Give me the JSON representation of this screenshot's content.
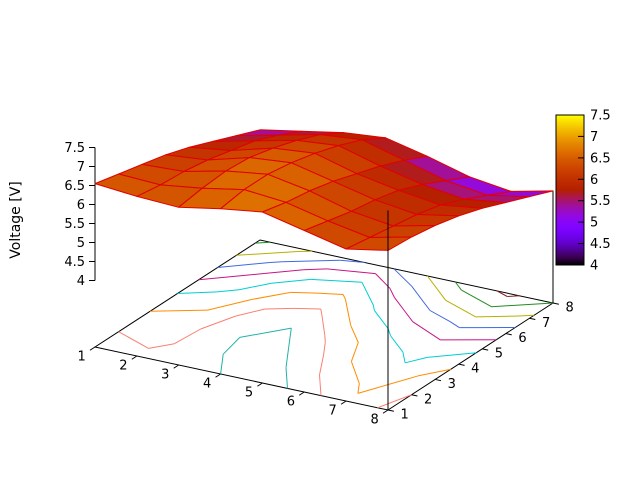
{
  "window": {
    "background": "#ffffff"
  },
  "chart_data": {
    "type": "surface3d_with_base_contours",
    "title": "",
    "zlabel": "Voltage [V]",
    "x": [
      1,
      2,
      3,
      4,
      5,
      6,
      7,
      8
    ],
    "y": [
      1,
      2,
      3,
      4,
      5,
      6,
      7,
      8
    ],
    "z_grid": [
      [
        6.55,
        6.45,
        6.4,
        6.6,
        6.75,
        6.5,
        6.25,
        6.45
      ],
      [
        6.4,
        6.35,
        6.5,
        6.7,
        6.6,
        6.35,
        6.15,
        6.4
      ],
      [
        6.25,
        6.3,
        6.55,
        6.7,
        6.5,
        6.2,
        6.05,
        6.3
      ],
      [
        6.1,
        6.2,
        6.5,
        6.6,
        6.35,
        6.1,
        5.95,
        6.15
      ],
      [
        5.9,
        6.05,
        6.35,
        6.45,
        6.15,
        5.95,
        5.8,
        5.95
      ],
      [
        5.65,
        5.9,
        6.15,
        6.25,
        5.95,
        5.7,
        5.55,
        5.7
      ],
      [
        5.4,
        5.65,
        5.9,
        6.0,
        5.7,
        5.4,
        5.25,
        5.45
      ],
      [
        5.15,
        5.35,
        5.55,
        5.65,
        5.4,
        5.1,
        4.95,
        5.2
      ]
    ],
    "xrange": [
      1,
      8
    ],
    "yrange": [
      1,
      8
    ],
    "zrange": [
      4,
      7.5
    ],
    "cbrange": [
      4,
      7.5
    ],
    "x_tick_labels": [
      "1",
      "2",
      "3",
      "4",
      "5",
      "6",
      "7",
      "8"
    ],
    "y_tick_labels": [
      "1",
      "2",
      "3",
      "4",
      "5",
      "6",
      "7",
      "8"
    ],
    "z_tick_labels": [
      "4",
      "4.5",
      "5",
      "5.5",
      "6",
      "6.5",
      "7",
      "7.5"
    ],
    "cb_tick_labels": [
      "7.5",
      "7",
      "6.5",
      "6",
      "5.5",
      "5",
      "4.5",
      "4"
    ],
    "contour_levels": [
      5.0,
      5.2,
      5.4,
      5.6,
      5.8,
      6.0,
      6.2,
      6.4,
      6.6
    ],
    "contour_colors": [
      "#8b2323",
      "#228b22",
      "#b8b000",
      "#4169e1",
      "#c71585",
      "#00ced1",
      "#ff8c00",
      "#fa8072",
      "#20b2aa"
    ],
    "mesh_color": "#e00000",
    "palette": "black-blue-violet-red-orange-yellow (gnuplot pm3d rgbformulae 7,5,15)",
    "legend_position": "colorbar-right",
    "grid": "contour projection on base plane"
  }
}
